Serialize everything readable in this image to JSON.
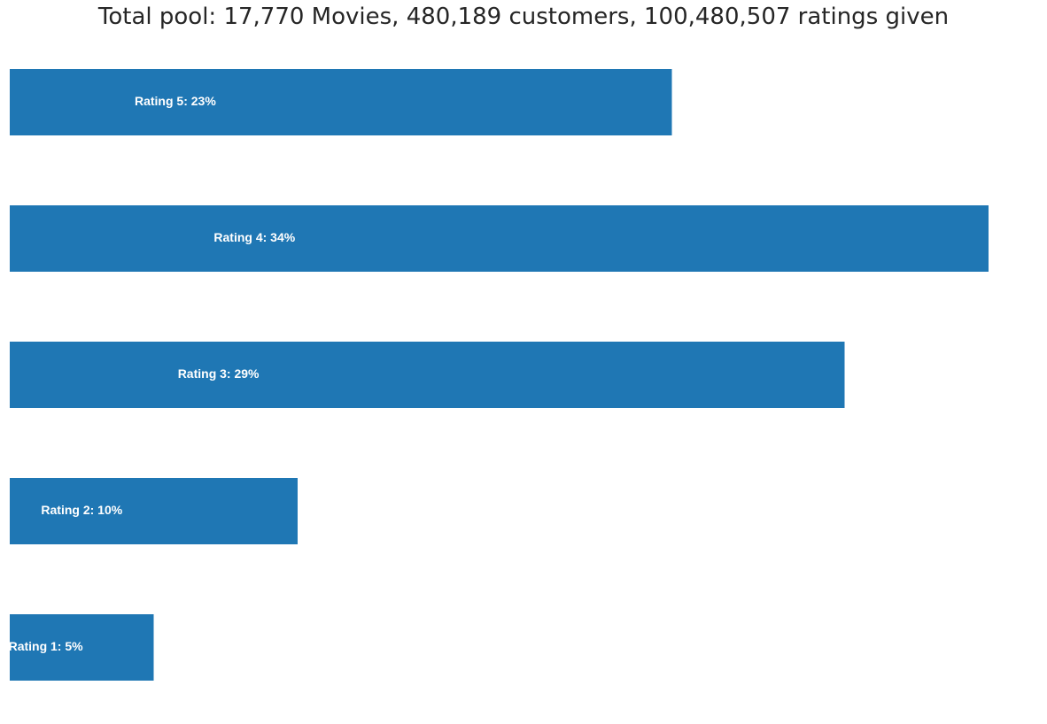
{
  "chart_data": {
    "type": "bar",
    "orientation": "horizontal",
    "title": "Total pool: 17,770 Movies, 480,189 customers, 100,480,507 ratings given",
    "xlabel": "",
    "ylabel": "",
    "axis_visible": false,
    "grid": false,
    "bar_color": "#1f77b4",
    "label_color": "#ffffff",
    "categories": [
      5,
      4,
      3,
      2,
      1
    ],
    "values": [
      23,
      34,
      29,
      10,
      5
    ],
    "bar_labels": [
      "Rating 5: 23%",
      "Rating 4: 34%",
      "Rating 3: 29%",
      "Rating 2: 10%",
      "Rating 1: 5%"
    ],
    "value_unit": "percent of ratings"
  }
}
